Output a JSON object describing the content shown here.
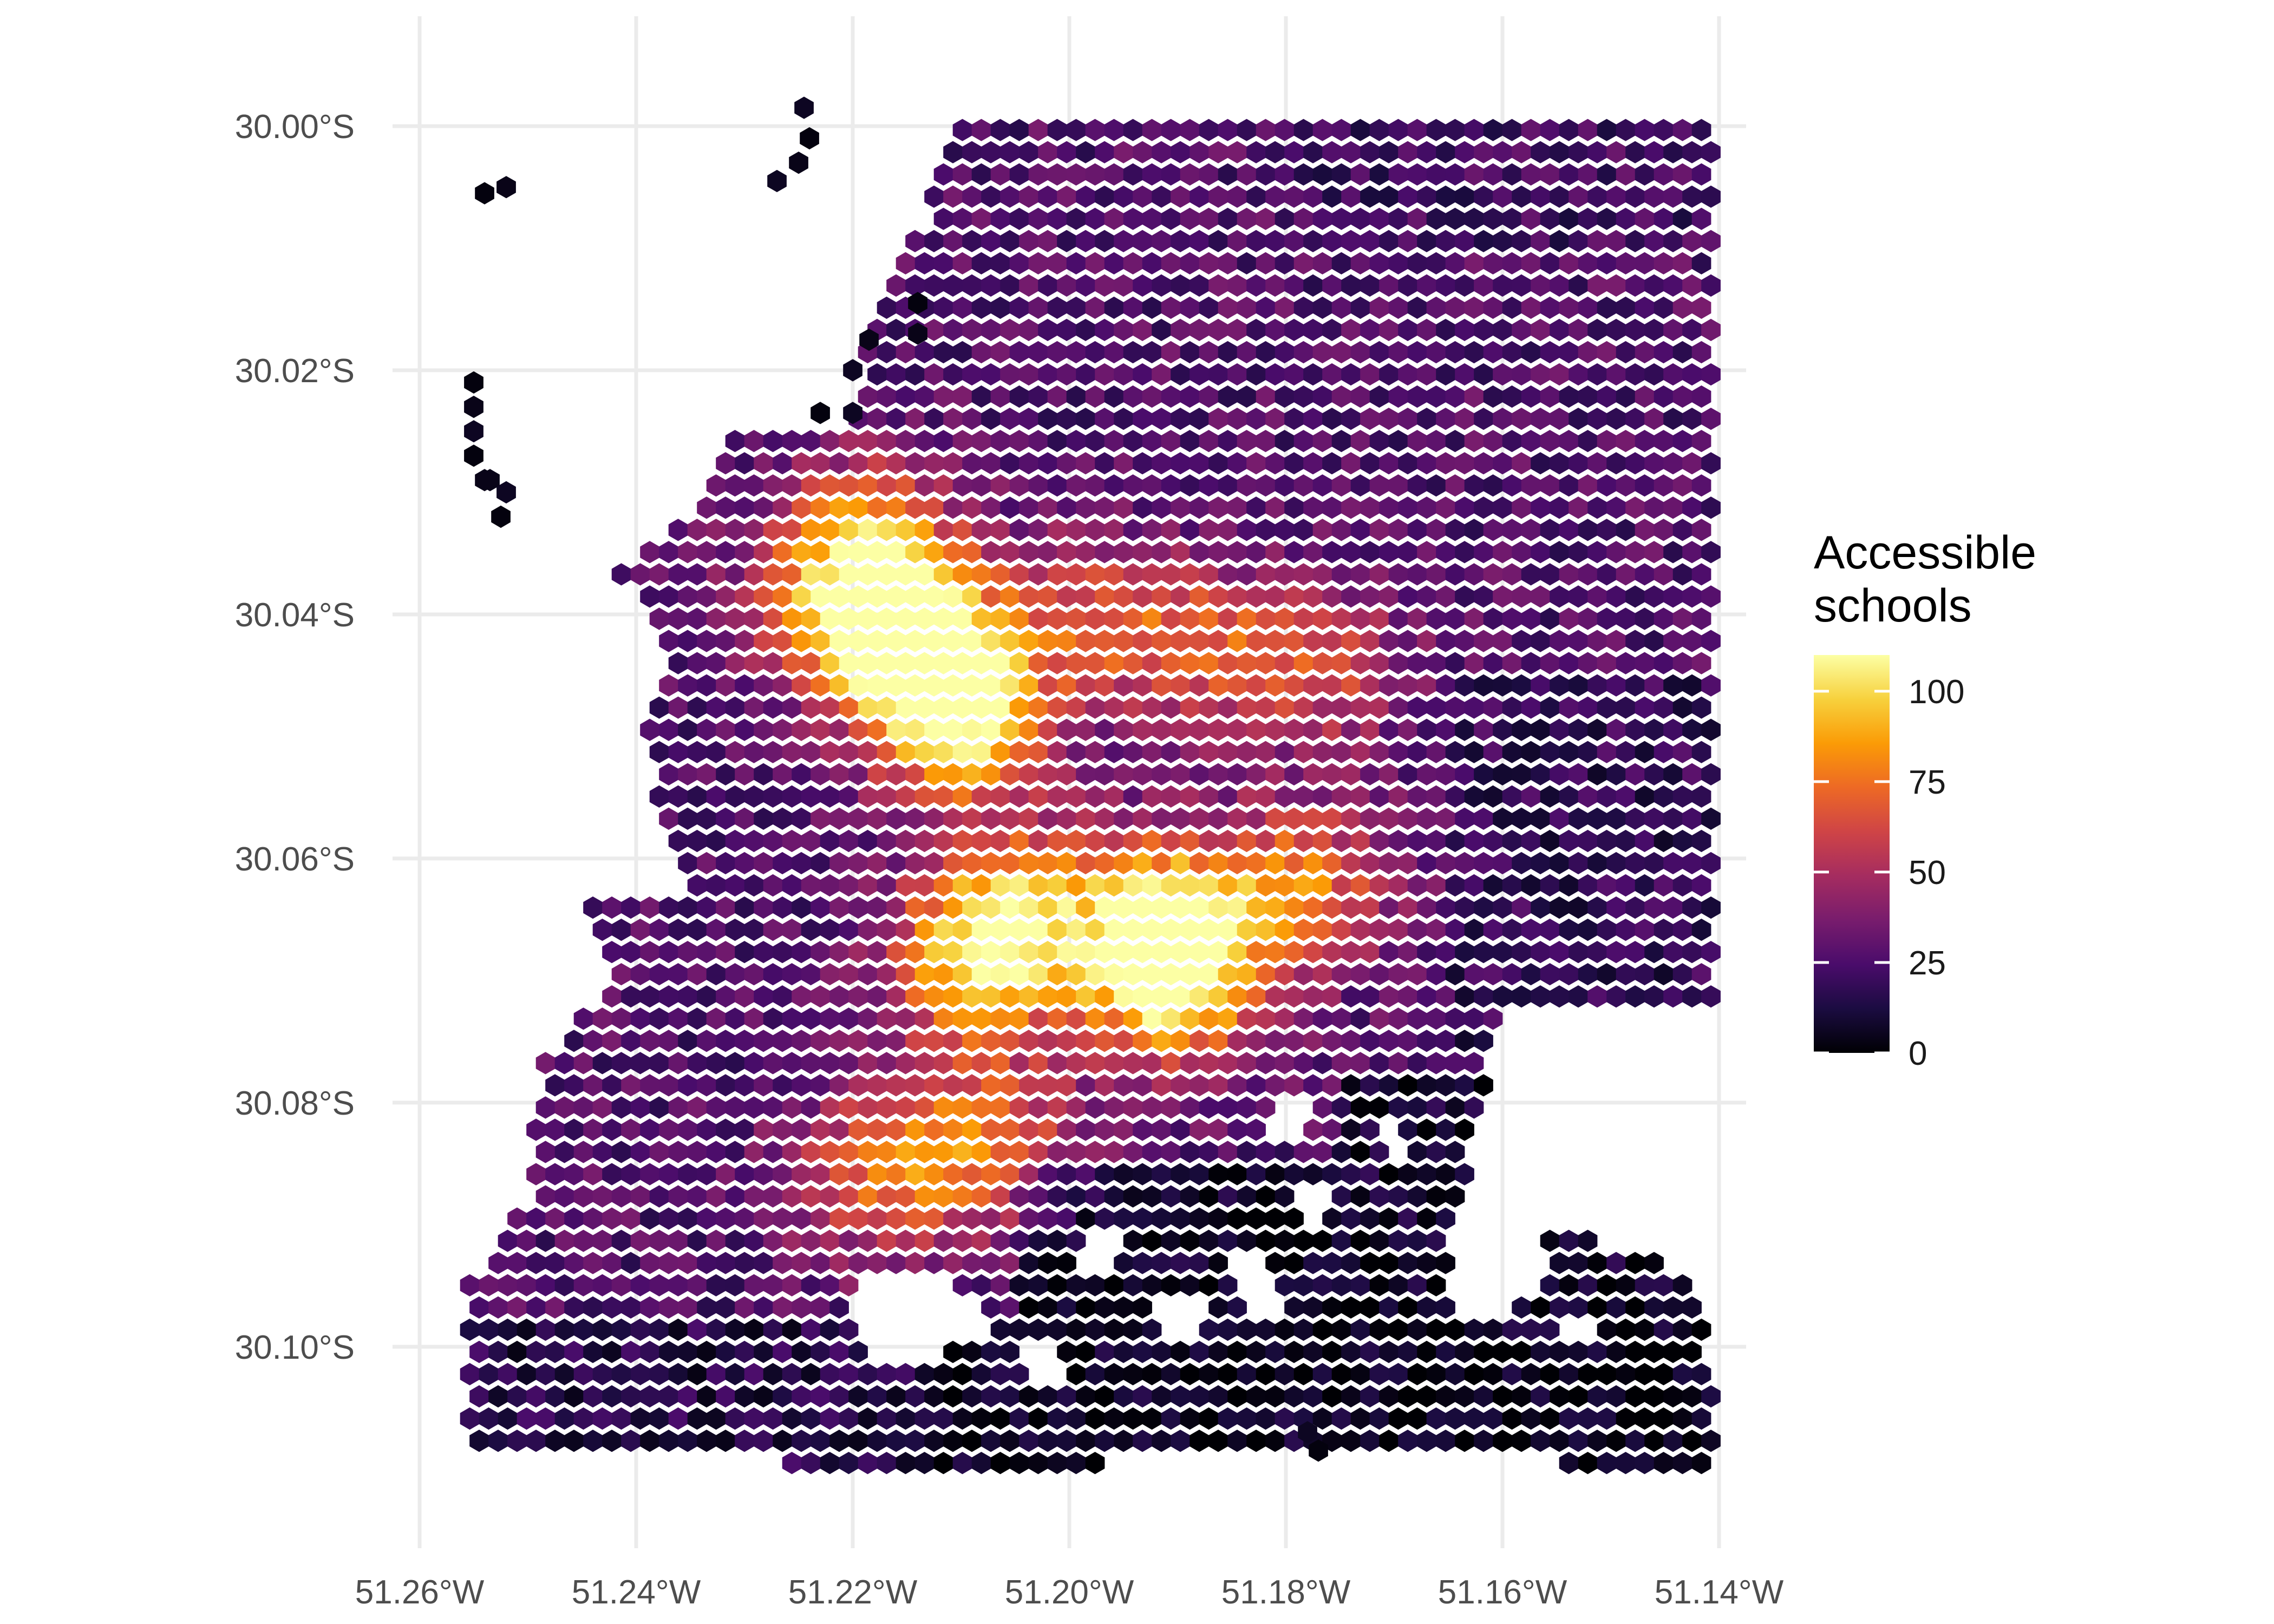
{
  "chart_data": {
    "type": "heatmap",
    "map_type": "hexbin choropleth",
    "x": {
      "ticks": [
        -51.26,
        -51.24,
        -51.22,
        -51.2,
        -51.18,
        -51.16,
        -51.14
      ],
      "tick_labels": [
        "51.26°W",
        "51.24°W",
        "51.22°W",
        "51.20°W",
        "51.18°W",
        "51.16°W",
        "51.14°W"
      ],
      "range": [
        -51.2625,
        -51.1375
      ]
    },
    "y": {
      "ticks": [
        -30.0,
        -30.02,
        -30.04,
        -30.06,
        -30.08,
        -30.1
      ],
      "tick_labels": [
        "30.00°S",
        "30.02°S",
        "30.04°S",
        "30.06°S",
        "30.08°S",
        "30.10°S"
      ],
      "range": [
        -30.1165,
        -29.991
      ]
    },
    "grid": true,
    "legend": {
      "title_lines": [
        "Accessible",
        "schools"
      ],
      "position": "right",
      "range": [
        0,
        110
      ],
      "ticks": [
        0,
        25,
        50,
        75,
        100
      ],
      "tick_labels": [
        "0",
        "25",
        "50",
        "75",
        "100"
      ],
      "palette": "inferno",
      "colors": [
        "#000004",
        "#1b0c41",
        "#4a0c6b",
        "#781c6d",
        "#a52c60",
        "#cf4446",
        "#ed6925",
        "#fb9b06",
        "#f7d13d",
        "#fcffa4"
      ]
    },
    "hex_spacing_deg": 0.00175,
    "hex_row_step_deg": 0.00182,
    "hotspots": [
      {
        "lon": -51.2105,
        "lat": -30.0485,
        "value": 108
      },
      {
        "lon": -51.2145,
        "lat": -30.0415,
        "value": 96
      },
      {
        "lon": -51.1905,
        "lat": -30.0705,
        "value": 103
      },
      {
        "lon": -51.191,
        "lat": -30.064,
        "value": 85
      },
      {
        "lon": -51.219,
        "lat": -30.0335,
        "value": 72
      },
      {
        "lon": -51.221,
        "lat": -30.0395,
        "value": 70
      },
      {
        "lon": -51.2085,
        "lat": -30.069,
        "value": 82
      },
      {
        "lon": -51.205,
        "lat": -30.064,
        "value": 80
      },
      {
        "lon": -51.208,
        "lat": -30.083,
        "value": 72
      },
      {
        "lon": -51.218,
        "lat": -30.086,
        "value": 68
      },
      {
        "lon": -51.178,
        "lat": -30.062,
        "value": 72
      },
      {
        "lon": -51.177,
        "lat": -30.044,
        "value": 62
      },
      {
        "lon": -51.198,
        "lat": -30.04,
        "value": 62
      },
      {
        "lon": -51.188,
        "lat": -30.043,
        "value": 60
      }
    ]
  }
}
